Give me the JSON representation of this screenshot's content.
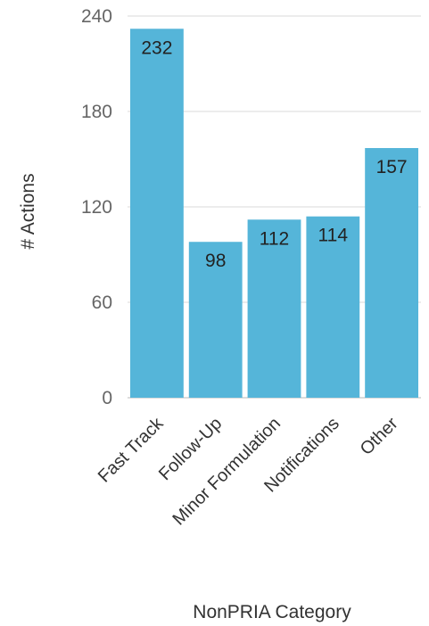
{
  "chart_data": {
    "type": "bar",
    "categories": [
      "Fast Track",
      "Follow-Up",
      "Minor Formulation",
      "Notifications",
      "Other"
    ],
    "values": [
      232,
      98,
      112,
      114,
      157
    ],
    "data_labels": [
      "232",
      "98",
      "112",
      "114",
      "157"
    ],
    "xlabel": "NonPRIA Category",
    "ylabel": "# Actions",
    "ylim": [
      0,
      240
    ],
    "yticks": [
      0,
      60,
      120,
      180,
      240
    ],
    "ytick_labels": [
      "0",
      "60",
      "120",
      "180",
      "240"
    ],
    "grid": true,
    "bar_color": "#55b5d9",
    "grid_color": "#e6e6e6"
  }
}
